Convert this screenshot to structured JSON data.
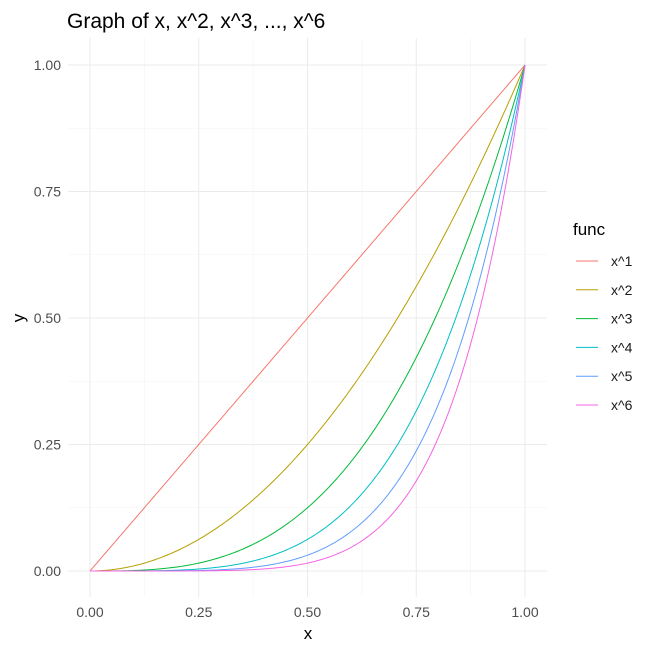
{
  "chart_data": {
    "type": "line",
    "title": "Graph of x, x^2, x^3, ..., x^6",
    "xlabel": "x",
    "ylabel": "y",
    "xlim": [
      0,
      1
    ],
    "ylim": [
      0,
      1
    ],
    "x_ticks": [
      "0.00",
      "0.25",
      "0.50",
      "0.75",
      "1.00"
    ],
    "y_ticks": [
      "0.00",
      "0.25",
      "0.50",
      "0.75",
      "1.00"
    ],
    "grid": true,
    "legend_title": "func",
    "legend_position": "right",
    "x": [
      0,
      0.05,
      0.1,
      0.15,
      0.2,
      0.25,
      0.3,
      0.35,
      0.4,
      0.45,
      0.5,
      0.55,
      0.6,
      0.65,
      0.7,
      0.75,
      0.8,
      0.85,
      0.9,
      0.95,
      1
    ],
    "series": [
      {
        "name": "x^1",
        "exponent": 1,
        "color": "#F8766D"
      },
      {
        "name": "x^2",
        "exponent": 2,
        "color": "#B79F00"
      },
      {
        "name": "x^3",
        "exponent": 3,
        "color": "#00BA38"
      },
      {
        "name": "x^4",
        "exponent": 4,
        "color": "#00BFC4"
      },
      {
        "name": "x^5",
        "exponent": 5,
        "color": "#619CFF"
      },
      {
        "name": "x^6",
        "exponent": 6,
        "color": "#F564E3"
      }
    ]
  }
}
